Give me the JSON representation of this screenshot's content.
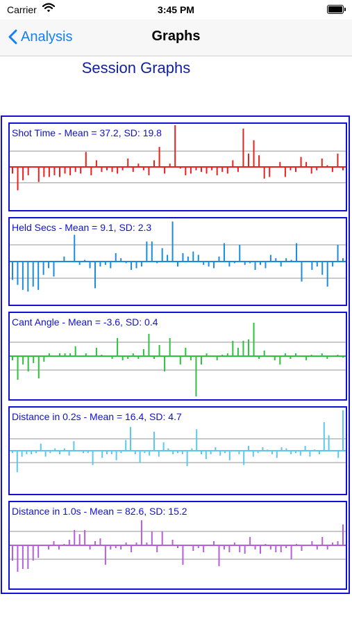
{
  "status": {
    "carrier": "Carrier",
    "time": "3:45 PM"
  },
  "nav": {
    "back_label": "Analysis",
    "title": "Graphs"
  },
  "heading": "Session Graphs",
  "colors": {
    "frame": "#1010d8",
    "gridline": "#b8b8b8",
    "back_tint": "#157efb"
  },
  "chart_data": [
    {
      "type": "bar",
      "title": "Shot Time - Mean = 37.2, SD: 19.8",
      "color": "#e8211c",
      "values": [
        -0.4,
        -1.4,
        -0.8,
        -0.5,
        0,
        -0.9,
        -0.6,
        -0.6,
        -0.5,
        -0.6,
        -0.4,
        -0.5,
        -0.3,
        -0.4,
        0.9,
        -0.5,
        0.4,
        -0.3,
        -0.2,
        -0.3,
        -0.4,
        -0.2,
        0.5,
        -0.3,
        0.2,
        -0.2,
        -0.5,
        0.4,
        1.2,
        -0.4,
        0.2,
        2.5,
        -0.1,
        -0.5,
        -0.4,
        -0.2,
        -0.3,
        -0.4,
        -0.2,
        -0.5,
        -0.3,
        -0.4,
        0.4,
        -0.3,
        2.3,
        0.8,
        1.6,
        0.7,
        -0.7,
        -0.6,
        0,
        0.3,
        -0.6,
        -0.2,
        -0.3,
        0.6,
        0.3,
        -0.4,
        -0.2,
        0.5,
        0.1,
        -0.3,
        0.8,
        -0.2
      ],
      "band": 0.95,
      "vmax": 2.5
    },
    {
      "type": "bar",
      "title": "Held Secs - Mean = 9.1, SD: 2.3",
      "color": "#1a8ce0",
      "values": [
        -1.1,
        -1.4,
        -1.7,
        -1.8,
        -1.5,
        -1.7,
        -0.8,
        -0.4,
        -0.9,
        0,
        0.3,
        0,
        1.6,
        -0.2,
        0.1,
        -0.4,
        -1.6,
        -0.3,
        -0.2,
        -0.4,
        0.5,
        0.2,
        -0.1,
        -0.5,
        -0.4,
        -0.3,
        1.2,
        1.2,
        -0.1,
        0.8,
        0.4,
        2.4,
        -0.3,
        0.5,
        0.3,
        0.6,
        0.4,
        -0.2,
        -0.3,
        -0.4,
        0.3,
        1.1,
        -0.3,
        -0.1,
        1,
        -0.2,
        -0.1,
        -0.5,
        -0.2,
        -0.4,
        0.4,
        0.2,
        -0.3,
        0.2,
        0.1,
        1.1,
        -1.2,
        0,
        -0.5,
        -0.3,
        -0.8,
        -1.5,
        -0.3,
        1,
        0.2
      ],
      "band": 1,
      "vmax": 2.5
    },
    {
      "type": "bar",
      "title": "Cant Angle - Mean = -3.6, SD: 0.4",
      "color": "#2cc23c",
      "values": [
        -0.3,
        -1.7,
        -0.6,
        -1.1,
        -0.5,
        -1.6,
        -0.4,
        0.2,
        0,
        0.2,
        0.2,
        0.2,
        0.7,
        0,
        0.2,
        0,
        0.6,
        0.1,
        0,
        -0.2,
        1.3,
        -0.3,
        -0.2,
        0.2,
        -0.2,
        0.5,
        1.6,
        -0.2,
        0.8,
        -1.1,
        1.3,
        0,
        -0.6,
        0.6,
        -0.3,
        -2.9,
        -0.6,
        0.2,
        0,
        -0.3,
        0.1,
        0.2,
        1.1,
        0.6,
        1.1,
        1.2,
        2.4,
        -0.2,
        0.4,
        0,
        -0.3,
        -0.6,
        0.2,
        -0.2,
        0.2,
        0,
        -0.3,
        0.1,
        0,
        0.2,
        -0.2,
        0,
        0.1,
        -0.1
      ],
      "band": 1,
      "vmax": 3
    },
    {
      "type": "bar",
      "title": "Distance in 0.2s - Mean = 16.4, SD: 4.7",
      "color": "#5ac8f0",
      "values": [
        -0.2,
        -1.8,
        -0.5,
        -0.3,
        -0.3,
        -0.2,
        0.6,
        -0.5,
        -0.2,
        0.2,
        -0.3,
        0.2,
        -0.4,
        0.8,
        0,
        -0.2,
        -0.2,
        -1.2,
        0,
        -0.6,
        -0.3,
        -0.3,
        -0.8,
        -0.2,
        0.9,
        2,
        -0.3,
        -1,
        -0.2,
        -0.4,
        1.6,
        -0.5,
        0.7,
        0.2,
        -0.3,
        -0.2,
        -0.3,
        -1.3,
        0.2,
        1.8,
        -0.3,
        -0.7,
        -0.3,
        0.3,
        -0.4,
        -0.2,
        -0.8,
        0,
        -0.3,
        -1.2,
        0.4,
        -0.5,
        -0.2,
        0.3,
        0.1,
        -0.3,
        -0.6,
        0.3,
        0.2,
        -0.3,
        -0.2,
        -0.4,
        0.4,
        -0.5,
        0.1,
        -0.3,
        2.4,
        1.3,
        0,
        -0.6,
        3.4
      ],
      "band": 1,
      "vmax": 3.5
    },
    {
      "type": "bar",
      "title": "Distance in 1.0s - Mean = 82.6, SD: 15.2",
      "color": "#b65edc",
      "values": [
        -1.1,
        -1.9,
        -1.7,
        -1.7,
        -1.1,
        -0.9,
        0,
        -0.3,
        0.3,
        -0.3,
        0.1,
        0.4,
        1.1,
        0.8,
        1.1,
        -0.3,
        0.3,
        0.5,
        -1.4,
        -0.3,
        -0.2,
        -0.3,
        0.2,
        -0.5,
        0.2,
        1.8,
        0.2,
        1,
        -0.5,
        1,
        0,
        0.4,
        -0.2,
        -1.4,
        0,
        -0.4,
        -0.2,
        -0.5,
        0,
        0.3,
        -1.5,
        -0.3,
        -0.5,
        0.2,
        -0.5,
        -0.6,
        0.6,
        -0.3,
        -0.6,
        0.1,
        -0.3,
        -0.5,
        -0.5,
        -0.2,
        -1,
        0.1,
        -0.4,
        0,
        0.3,
        -0.3,
        0.6,
        -0.3,
        0.2,
        0.3,
        1.5
      ],
      "band": 1,
      "vmax": 3
    }
  ]
}
